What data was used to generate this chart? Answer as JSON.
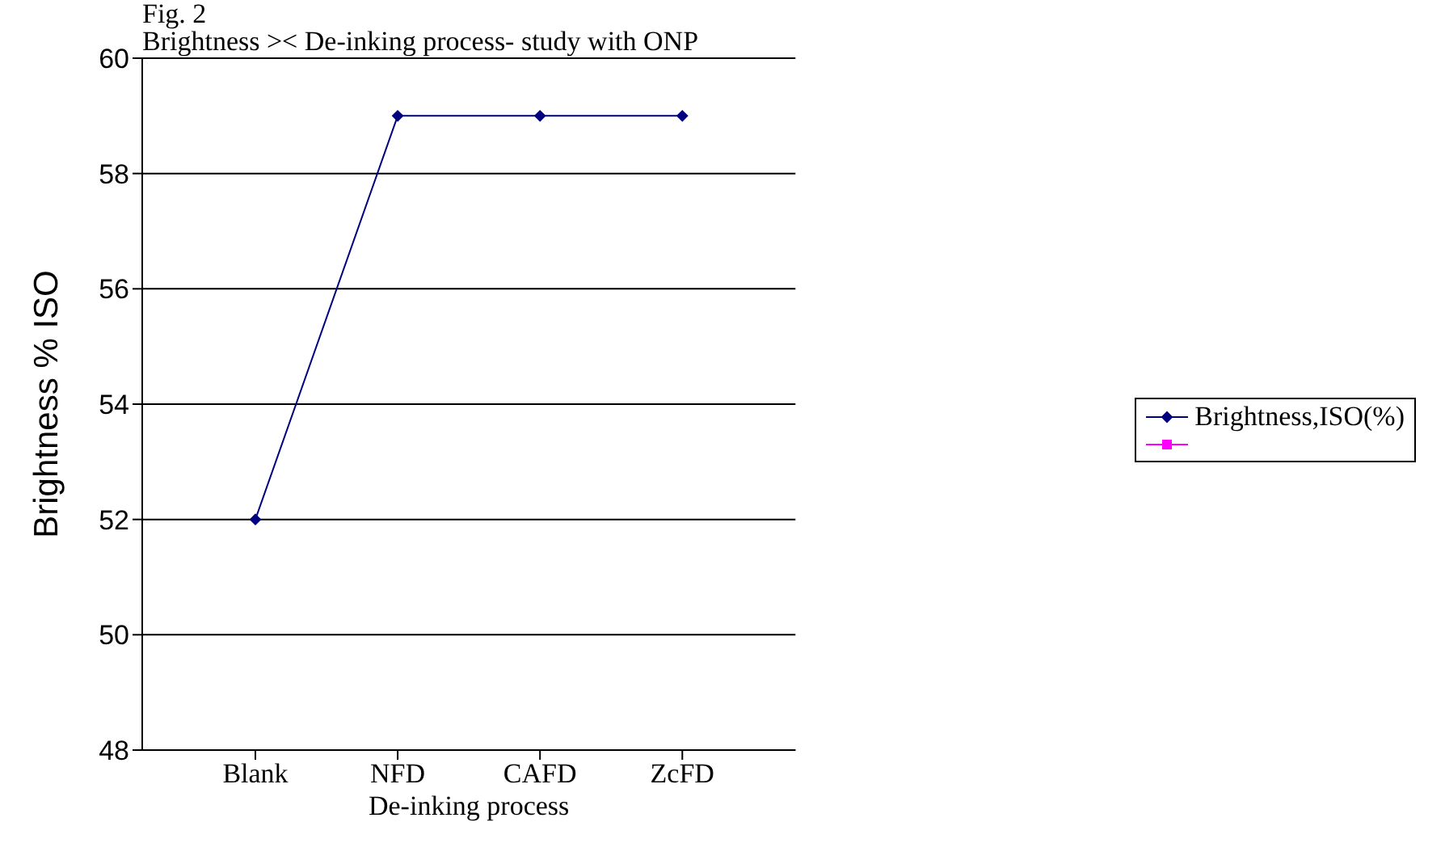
{
  "chart_data": {
    "type": "line",
    "title": "Brightness >< De-inking process- study with ONP",
    "annotations": [
      "Fig. 2"
    ],
    "xlabel": "De-inking process",
    "ylabel": "Brightness % ISO",
    "categories": [
      "Blank",
      "NFD",
      "CAFD",
      "ZcFD"
    ],
    "series": [
      {
        "name": "Brightness,ISO(%)",
        "color": "#000080",
        "values": [
          52,
          59,
          59,
          59
        ],
        "marker": "diamond"
      },
      {
        "color": "#ff00ff",
        "values": [
          null,
          null,
          null,
          null
        ],
        "marker": "square"
      }
    ],
    "ylim": [
      48,
      60
    ],
    "yticks": [
      48,
      50,
      52,
      54,
      56,
      58,
      60
    ],
    "grid": "y",
    "legend": "right",
    "line_style": "solid"
  }
}
